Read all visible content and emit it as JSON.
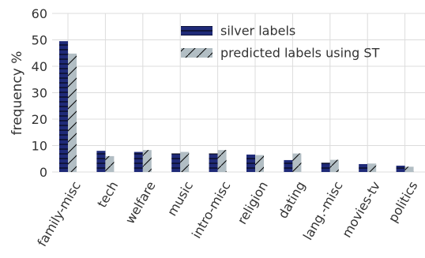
{
  "chart_data": {
    "type": "bar",
    "title": "",
    "xlabel": "",
    "ylabel": "frequency %",
    "ylim": [
      0,
      60
    ],
    "yticks": [
      0,
      10,
      20,
      30,
      40,
      50,
      60
    ],
    "grid": true,
    "legend_position": "top-center",
    "categories": [
      "family-misc",
      "tech",
      "welfare",
      "music",
      "intro-misc",
      "religion",
      "dating",
      "lang.-misc",
      "movies-tv",
      "politics"
    ],
    "series": [
      {
        "name": "silver labels",
        "color": "#1f2a78",
        "hatch": "horizontal",
        "values": [
          49.5,
          8.0,
          7.6,
          7.0,
          7.0,
          6.6,
          4.5,
          3.5,
          3.0,
          2.4
        ]
      },
      {
        "name": "predicted labels using ST",
        "color": "#b2bec4",
        "hatch": "diagonal",
        "values": [
          44.8,
          6.0,
          8.3,
          7.6,
          8.3,
          6.4,
          7.0,
          4.6,
          3.2,
          2.0
        ]
      }
    ]
  }
}
